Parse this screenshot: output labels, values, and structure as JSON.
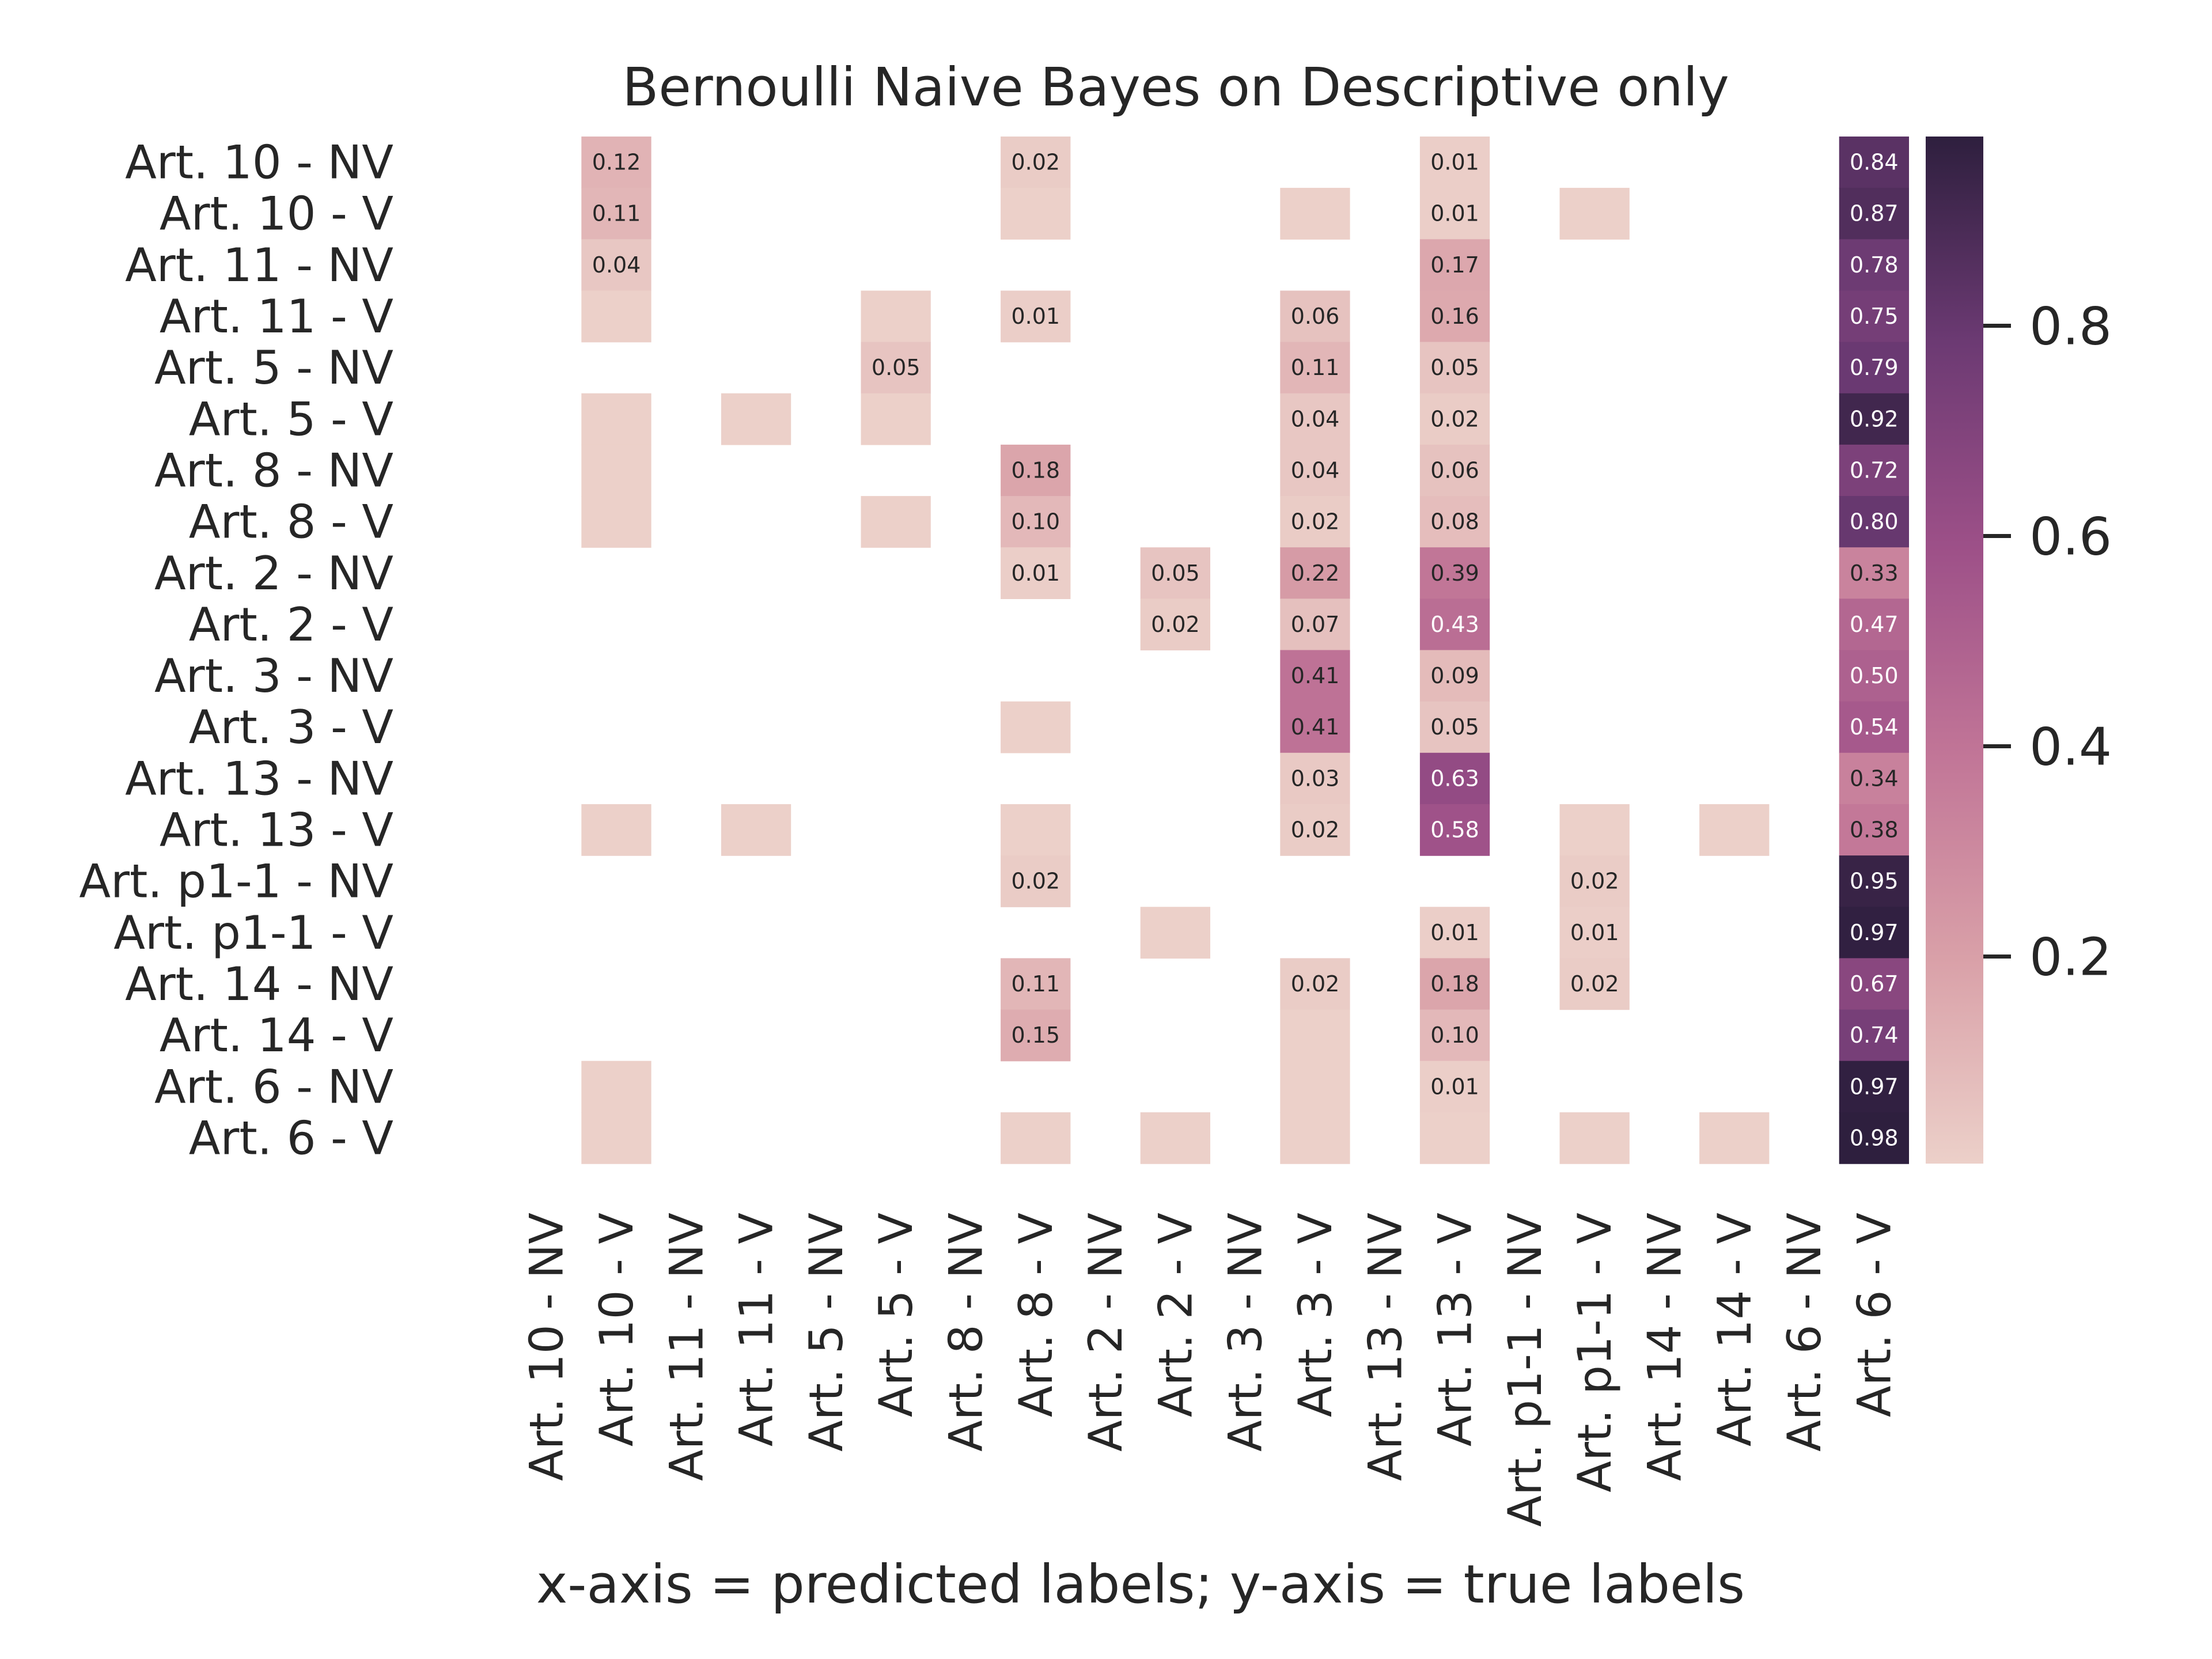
{
  "chart_data": {
    "type": "heatmap",
    "title": "Bernoulli Naive Bayes on Descriptive only",
    "xlabel": "x-axis = predicted labels; y-axis = true labels",
    "ylabel": "",
    "labels": [
      "Art. 10 - NV",
      "Art. 10 - V",
      "Art. 11 - NV",
      "Art. 11 - V",
      "Art. 5 - NV",
      "Art. 5 - V",
      "Art. 8 - NV",
      "Art. 8 - V",
      "Art. 2 - NV",
      "Art. 2 - V",
      "Art. 3 - NV",
      "Art. 3 - V",
      "Art. 13 - NV",
      "Art. 13 - V",
      "Art. p1-1 - NV",
      "Art. p1-1 - V",
      "Art. 14 - NV",
      "Art. 14 - V",
      "Art. 6 - NV",
      "Art. 6 - V"
    ],
    "rows": [
      {
        "cells": [
          [
            1,
            0.12,
            "0.12"
          ],
          [
            7,
            0.02,
            "0.02"
          ],
          [
            13,
            0.01,
            "0.01"
          ],
          [
            19,
            0.84,
            "0.84"
          ]
        ]
      },
      {
        "cells": [
          [
            1,
            0.11,
            "0.11"
          ],
          [
            7,
            0.003,
            ""
          ],
          [
            11,
            0.003,
            ""
          ],
          [
            13,
            0.01,
            "0.01"
          ],
          [
            15,
            0.003,
            ""
          ],
          [
            19,
            0.87,
            "0.87"
          ]
        ]
      },
      {
        "cells": [
          [
            1,
            0.04,
            "0.04"
          ],
          [
            13,
            0.17,
            "0.17"
          ],
          [
            19,
            0.78,
            "0.78"
          ]
        ]
      },
      {
        "cells": [
          [
            1,
            0.003,
            ""
          ],
          [
            5,
            0.003,
            ""
          ],
          [
            7,
            0.01,
            "0.01"
          ],
          [
            11,
            0.06,
            "0.06"
          ],
          [
            13,
            0.16,
            "0.16"
          ],
          [
            19,
            0.75,
            "0.75"
          ]
        ]
      },
      {
        "cells": [
          [
            5,
            0.05,
            "0.05"
          ],
          [
            11,
            0.11,
            "0.11"
          ],
          [
            13,
            0.05,
            "0.05"
          ],
          [
            19,
            0.79,
            "0.79"
          ]
        ]
      },
      {
        "cells": [
          [
            1,
            0.003,
            ""
          ],
          [
            3,
            0.003,
            ""
          ],
          [
            5,
            0.003,
            ""
          ],
          [
            11,
            0.04,
            "0.04"
          ],
          [
            13,
            0.02,
            "0.02"
          ],
          [
            19,
            0.92,
            "0.92"
          ]
        ]
      },
      {
        "cells": [
          [
            1,
            0.003,
            ""
          ],
          [
            7,
            0.18,
            "0.18"
          ],
          [
            11,
            0.04,
            "0.04"
          ],
          [
            13,
            0.06,
            "0.06"
          ],
          [
            19,
            0.72,
            "0.72"
          ]
        ]
      },
      {
        "cells": [
          [
            1,
            0.003,
            ""
          ],
          [
            5,
            0.003,
            ""
          ],
          [
            7,
            0.1,
            "0.10"
          ],
          [
            11,
            0.02,
            "0.02"
          ],
          [
            13,
            0.08,
            "0.08"
          ],
          [
            19,
            0.8,
            "0.80"
          ]
        ]
      },
      {
        "cells": [
          [
            7,
            0.01,
            "0.01"
          ],
          [
            9,
            0.05,
            "0.05"
          ],
          [
            11,
            0.22,
            "0.22"
          ],
          [
            13,
            0.39,
            "0.39"
          ],
          [
            19,
            0.33,
            "0.33"
          ]
        ]
      },
      {
        "cells": [
          [
            9,
            0.02,
            "0.02"
          ],
          [
            11,
            0.07,
            "0.07"
          ],
          [
            13,
            0.43,
            "0.43"
          ],
          [
            19,
            0.47,
            "0.47"
          ]
        ]
      },
      {
        "cells": [
          [
            11,
            0.41,
            "0.41"
          ],
          [
            13,
            0.09,
            "0.09"
          ],
          [
            19,
            0.5,
            "0.50"
          ]
        ]
      },
      {
        "cells": [
          [
            7,
            0.003,
            ""
          ],
          [
            11,
            0.41,
            "0.41"
          ],
          [
            13,
            0.05,
            "0.05"
          ],
          [
            19,
            0.54,
            "0.54"
          ]
        ]
      },
      {
        "cells": [
          [
            11,
            0.03,
            "0.03"
          ],
          [
            13,
            0.63,
            "0.63"
          ],
          [
            19,
            0.34,
            "0.34"
          ]
        ]
      },
      {
        "cells": [
          [
            1,
            0.003,
            ""
          ],
          [
            3,
            0.003,
            ""
          ],
          [
            7,
            0.003,
            ""
          ],
          [
            11,
            0.02,
            "0.02"
          ],
          [
            13,
            0.58,
            "0.58"
          ],
          [
            15,
            0.003,
            ""
          ],
          [
            17,
            0.003,
            ""
          ],
          [
            19,
            0.38,
            "0.38"
          ]
        ]
      },
      {
        "cells": [
          [
            7,
            0.02,
            "0.02"
          ],
          [
            15,
            0.02,
            "0.02"
          ],
          [
            19,
            0.95,
            "0.95"
          ]
        ]
      },
      {
        "cells": [
          [
            9,
            0.003,
            ""
          ],
          [
            13,
            0.01,
            "0.01"
          ],
          [
            15,
            0.01,
            "0.01"
          ],
          [
            19,
            0.97,
            "0.97"
          ]
        ]
      },
      {
        "cells": [
          [
            7,
            0.11,
            "0.11"
          ],
          [
            11,
            0.02,
            "0.02"
          ],
          [
            13,
            0.18,
            "0.18"
          ],
          [
            15,
            0.02,
            "0.02"
          ],
          [
            19,
            0.67,
            "0.67"
          ]
        ]
      },
      {
        "cells": [
          [
            7,
            0.15,
            "0.15"
          ],
          [
            11,
            0.003,
            ""
          ],
          [
            13,
            0.1,
            "0.10"
          ],
          [
            19,
            0.74,
            "0.74"
          ]
        ]
      },
      {
        "cells": [
          [
            1,
            0.003,
            ""
          ],
          [
            11,
            0.003,
            ""
          ],
          [
            13,
            0.01,
            "0.01"
          ],
          [
            19,
            0.97,
            "0.97"
          ]
        ]
      },
      {
        "cells": [
          [
            1,
            0.003,
            ""
          ],
          [
            7,
            0.003,
            ""
          ],
          [
            9,
            0.003,
            ""
          ],
          [
            11,
            0.003,
            ""
          ],
          [
            13,
            0.003,
            ""
          ],
          [
            15,
            0.003,
            ""
          ],
          [
            17,
            0.003,
            ""
          ],
          [
            19,
            0.98,
            "0.98"
          ]
        ]
      }
    ],
    "colorbar": {
      "ticks": [
        0.2,
        0.4,
        0.6,
        0.8
      ],
      "tick_labels": [
        "0.2",
        "0.4",
        "0.6",
        "0.8"
      ],
      "vmin": 0.003,
      "vmax": 0.98,
      "colors": [
        "#ecd0c9",
        "#d9a0a8",
        "#c17597",
        "#9d5088",
        "#6c3a73",
        "#2e1f3e"
      ]
    },
    "grid": false,
    "legend": "colorbar-right"
  }
}
